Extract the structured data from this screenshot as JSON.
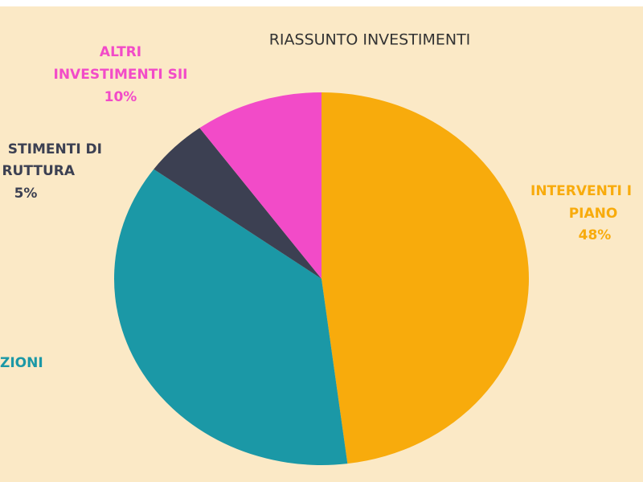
{
  "chart_data": {
    "type": "pie",
    "title": "RIASSUNTO INVESTIMENTI",
    "labels": [
      [
        "INTERVENTI I",
        "PIANO"
      ],
      [
        "ZIONI"
      ],
      [
        "STIMENTI DI",
        "RUTTURA"
      ],
      [
        "ALTRI",
        "INVESTIMENTI SII"
      ]
    ],
    "values": [
      48,
      37,
      5,
      10
    ],
    "value_labels": [
      "48%",
      null,
      "5%",
      "10%"
    ],
    "colors": [
      "#f8ab0c",
      "#1b98a6",
      "#3c4052",
      "#f24bc8"
    ]
  }
}
